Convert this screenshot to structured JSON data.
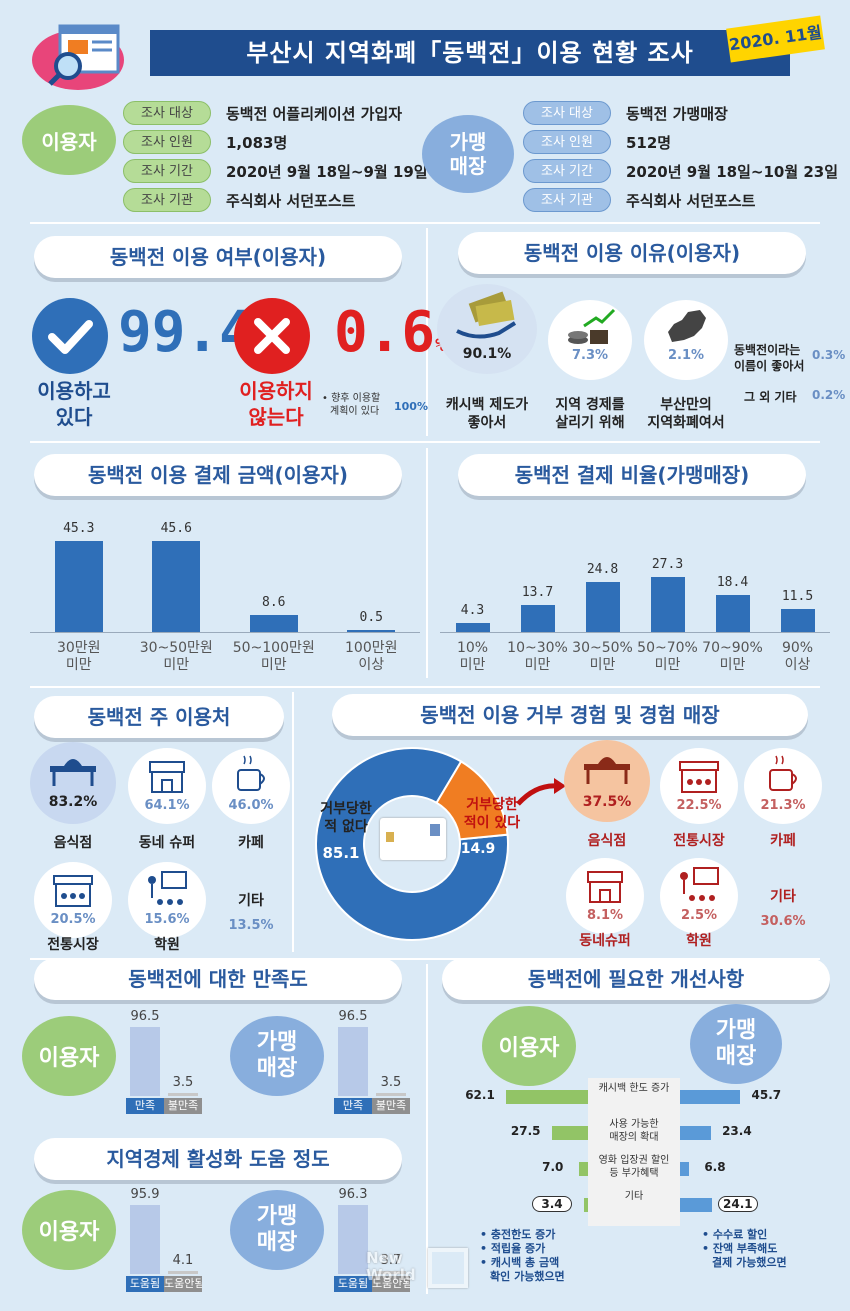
{
  "header": {
    "title": "부산시 지역화폐「동백전」이용 현황 조사",
    "date": "2020. 11월"
  },
  "survey": {
    "users": {
      "label": "이용자",
      "rows": [
        {
          "tag": "조사 대상",
          "value": "동백전 어플리케이션 가입자"
        },
        {
          "tag": "조사 인원",
          "value": "1,083명"
        },
        {
          "tag": "조사 기간",
          "value": "2020년 9월 18일~9월 19일"
        },
        {
          "tag": "조사 기관",
          "value": "주식회사 서던포스트"
        }
      ]
    },
    "stores": {
      "label1": "가맹",
      "label2": "매장",
      "rows": [
        {
          "tag": "조사 대상",
          "value": "동백전 가맹매장"
        },
        {
          "tag": "조사 인원",
          "value": "512명"
        },
        {
          "tag": "조사 기간",
          "value": "2020년 9월 18일~10월 23일"
        },
        {
          "tag": "조사 기관",
          "value": "주식회사 서던포스트"
        }
      ]
    }
  },
  "usage": {
    "title": "동백전 이용 여부(이용자)",
    "yes_pct": "99.4",
    "yes_unit": "%",
    "yes_label1": "이용하고",
    "yes_label2": "있다",
    "no_pct": "0.6",
    "no_unit": "%",
    "no_label1": "이용하지",
    "no_label2": "않는다",
    "note1": "• 향후 이용할",
    "note2": "계획이 있다",
    "note_pct": "100%"
  },
  "reasons": {
    "title": "동백전 이용 이유(이용자)",
    "items": [
      {
        "pct": "90.1%",
        "label1": "캐시백 제도가",
        "label2": "좋아서"
      },
      {
        "pct": "7.3%",
        "label1": "지역 경제를",
        "label2": "살리기 위해"
      },
      {
        "pct": "2.1%",
        "label1": "부산만의",
        "label2": "지역화폐여서"
      }
    ],
    "others": [
      {
        "label1": "동백전이라는",
        "label2": "이름이 좋아서",
        "pct": "0.3%"
      },
      {
        "label1": "그 외 기타",
        "label2": "",
        "pct": "0.2%"
      }
    ]
  },
  "amount": {
    "title": "동백전 이용 결제 금액(이용자)",
    "chart_data": {
      "type": "bar",
      "categories": [
        "30만원 미만",
        "30~50만원 미만",
        "50~100만원 미만",
        "100만원 이상"
      ],
      "values": [
        45.3,
        45.6,
        8.6,
        0.5
      ],
      "ylim": [
        0,
        50
      ]
    },
    "xlabels": [
      [
        "30만원",
        "미만"
      ],
      [
        "30~50만원",
        "미만"
      ],
      [
        "50~100만원",
        "미만"
      ],
      [
        "100만원",
        "이상"
      ]
    ],
    "vlabels": [
      "45.3",
      "45.6",
      "8.6",
      "0.5"
    ]
  },
  "ratio": {
    "title": "동백전 결제 비율(가맹매장)",
    "chart_data": {
      "type": "bar",
      "categories": [
        "10% 미만",
        "10~30% 미만",
        "30~50% 미만",
        "50~70% 미만",
        "70~90% 미만",
        "90% 이상"
      ],
      "values": [
        4.3,
        13.7,
        24.8,
        27.3,
        18.4,
        11.5
      ],
      "ylim": [
        0,
        30
      ]
    },
    "xlabels": [
      [
        "10%",
        "미만"
      ],
      [
        "10~30%",
        "미만"
      ],
      [
        "30~50%",
        "미만"
      ],
      [
        "50~70%",
        "미만"
      ],
      [
        "70~90%",
        "미만"
      ],
      [
        "90%",
        "이상"
      ]
    ],
    "vlabels": [
      "4.3",
      "13.7",
      "24.8",
      "27.3",
      "18.4",
      "11.5"
    ]
  },
  "places": {
    "title": "동백전 주 이용처",
    "items": [
      {
        "pct": "83.2%",
        "label": "음식점"
      },
      {
        "pct": "64.1%",
        "label": "동네 슈퍼"
      },
      {
        "pct": "46.0%",
        "label": "카페"
      },
      {
        "pct": "20.5%",
        "label": "전통시장"
      },
      {
        "pct": "15.6%",
        "label": "학원"
      },
      {
        "pct": "13.5%",
        "label": "기타"
      }
    ]
  },
  "refusal": {
    "title": "동백전 이용 거부 경험 및 경험 매장",
    "chart_data": {
      "type": "pie",
      "categories": [
        "거부당한 적 없다",
        "거부당한 적이 있다"
      ],
      "values": [
        85.1,
        14.9
      ]
    },
    "no_label1": "거부당한",
    "no_label2": "적 없다",
    "no_value": "85.1",
    "yes_label1": "거부당한",
    "yes_label2": "적이 있다",
    "yes_value": "14.9",
    "items": [
      {
        "pct": "37.5%",
        "label": "음식점"
      },
      {
        "pct": "22.5%",
        "label": "전통시장"
      },
      {
        "pct": "21.3%",
        "label": "카페"
      },
      {
        "pct": "8.1%",
        "label": "동네슈퍼"
      },
      {
        "pct": "2.5%",
        "label": "학원"
      },
      {
        "pct": "30.6%",
        "label": "기타"
      }
    ]
  },
  "satisfaction": {
    "title": "동백전에 대한 만족도",
    "user_label": "이용자",
    "store_label1": "가맹",
    "store_label2": "매장",
    "chart_data": {
      "type": "bar",
      "categories": [
        "만족",
        "불만족"
      ],
      "series": [
        {
          "name": "이용자",
          "values": [
            96.5,
            3.5
          ]
        },
        {
          "name": "가맹매장",
          "values": [
            96.5,
            3.5
          ]
        }
      ],
      "ylim": [
        0,
        100
      ]
    },
    "user_vals": [
      "96.5",
      "3.5"
    ],
    "store_vals": [
      "96.5",
      "3.5"
    ],
    "cat1": "만족",
    "cat2": "불만족"
  },
  "economy": {
    "title": "지역경제 활성화 도움 정도",
    "user_label": "이용자",
    "store_label1": "가맹",
    "store_label2": "매장",
    "chart_data": {
      "type": "bar",
      "categories": [
        "도움됨",
        "도움안됨"
      ],
      "series": [
        {
          "name": "이용자",
          "values": [
            95.9,
            4.1
          ]
        },
        {
          "name": "가맹매장",
          "values": [
            96.3,
            3.7
          ]
        }
      ],
      "ylim": [
        0,
        100
      ]
    },
    "user_vals": [
      "95.9",
      "4.1"
    ],
    "store_vals": [
      "96.3",
      "3.7"
    ],
    "cat1": "도움됨",
    "cat2": "도움안됨"
  },
  "improve": {
    "title": "동백전에 필요한 개선사항",
    "user_label": "이용자",
    "store_label1": "가맹",
    "store_label2": "매장",
    "chart_data": {
      "type": "bar",
      "categories": [
        "캐시백 한도 증가",
        "사용 가능한 매장의 확대",
        "영화 입장권 할인 등 부가혜택",
        "기타"
      ],
      "series": [
        {
          "name": "이용자",
          "values": [
            62.1,
            27.5,
            7.0,
            3.4
          ]
        },
        {
          "name": "가맹매장",
          "values": [
            45.7,
            23.4,
            6.8,
            24.1
          ]
        }
      ]
    },
    "rows": [
      {
        "label1": "캐시백 한도 증가",
        "label2": "",
        "left": "62.1",
        "right": "45.7"
      },
      {
        "label1": "사용 가능한",
        "label2": "매장의 확대",
        "left": "27.5",
        "right": "23.4"
      },
      {
        "label1": "영화 입장권 할인",
        "label2": "등 부가혜택",
        "left": "7.0",
        "right": "6.8"
      },
      {
        "label1": "기타",
        "label2": "",
        "left": "3.4",
        "right": "24.1"
      }
    ],
    "user_notes": [
      "• 충전한도 증가",
      "• 적립율 증가",
      "• 캐시백 총 금액",
      "확인 가능했으면"
    ],
    "store_notes": [
      "• 수수료 할인",
      "• 잔액 부족해도",
      "결제 가능했으면"
    ]
  },
  "colors": {
    "navy": "#1f4d8e",
    "bar_blue": "#2f6fb8",
    "green": "#9ccc7a",
    "red": "#e02020",
    "pie_orange": "#f07d22"
  },
  "watermark": "New World"
}
